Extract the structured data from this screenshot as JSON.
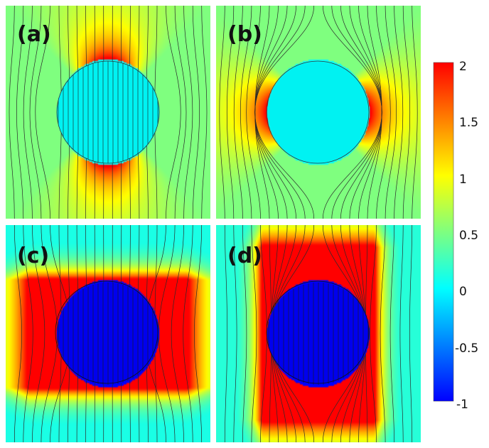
{
  "panels": [
    {
      "label": "(a)",
      "mode": "a",
      "inner": "#00f2f2"
    },
    {
      "label": "(b)",
      "mode": "b",
      "inner": "#00f2f2"
    },
    {
      "label": "(c)",
      "mode": "c",
      "inner": "#0000ee"
    },
    {
      "label": "(d)",
      "mode": "d",
      "inner": "#0000ee"
    }
  ],
  "colorbar": {
    "min": -1,
    "max": 2,
    "ticks": [
      "2",
      "1.5",
      "1",
      "0.5",
      "0",
      "-0.5",
      "-1"
    ],
    "colors": [
      "#0000ff",
      "#00ffff",
      "#ffff00",
      "#ff0000"
    ]
  }
}
